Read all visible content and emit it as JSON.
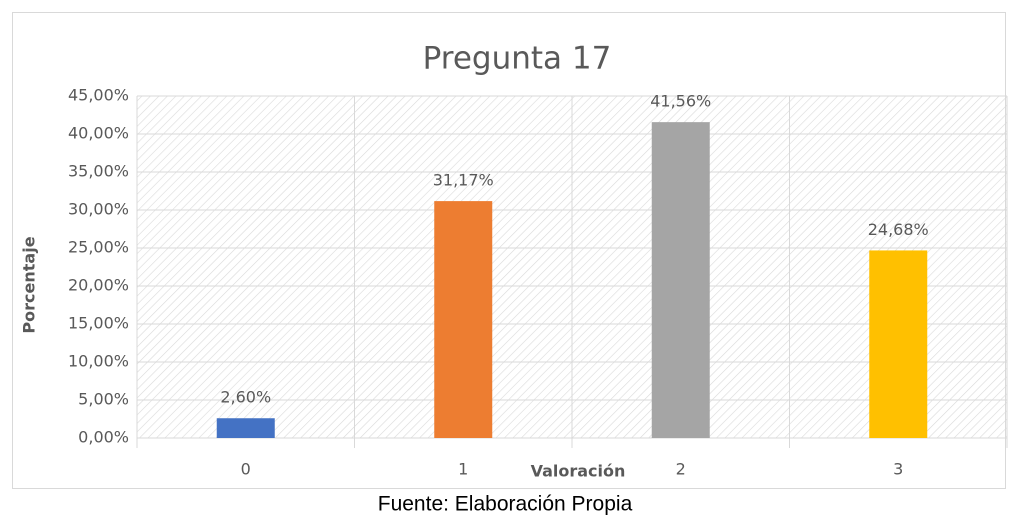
{
  "chart_data": {
    "type": "bar",
    "title": "Pregunta 17",
    "categories": [
      "0",
      "1",
      "2",
      "3"
    ],
    "values": [
      2.6,
      31.17,
      41.56,
      24.68
    ],
    "value_labels": [
      "2,60%",
      "31,17%",
      "41,56%",
      "24,68%"
    ],
    "colors": [
      "#4472c4",
      "#ed7d31",
      "#a5a5a5",
      "#ffc000"
    ],
    "xlabel": "Valoración",
    "ylabel": "Porcentaje",
    "ylim": [
      0,
      45
    ],
    "yticks": [
      {
        "value": 0,
        "label": "0,00%"
      },
      {
        "value": 5,
        "label": "5,00%"
      },
      {
        "value": 10,
        "label": "10,00%"
      },
      {
        "value": 15,
        "label": "15,00%"
      },
      {
        "value": 20,
        "label": "20,00%"
      },
      {
        "value": 25,
        "label": "25,00%"
      },
      {
        "value": 30,
        "label": "30,00%"
      },
      {
        "value": 35,
        "label": "35,00%"
      },
      {
        "value": 40,
        "label": "40,00%"
      },
      {
        "value": 45,
        "label": "45,00%"
      }
    ],
    "grid": true,
    "source": "Fuente: Elaboración Propia"
  }
}
